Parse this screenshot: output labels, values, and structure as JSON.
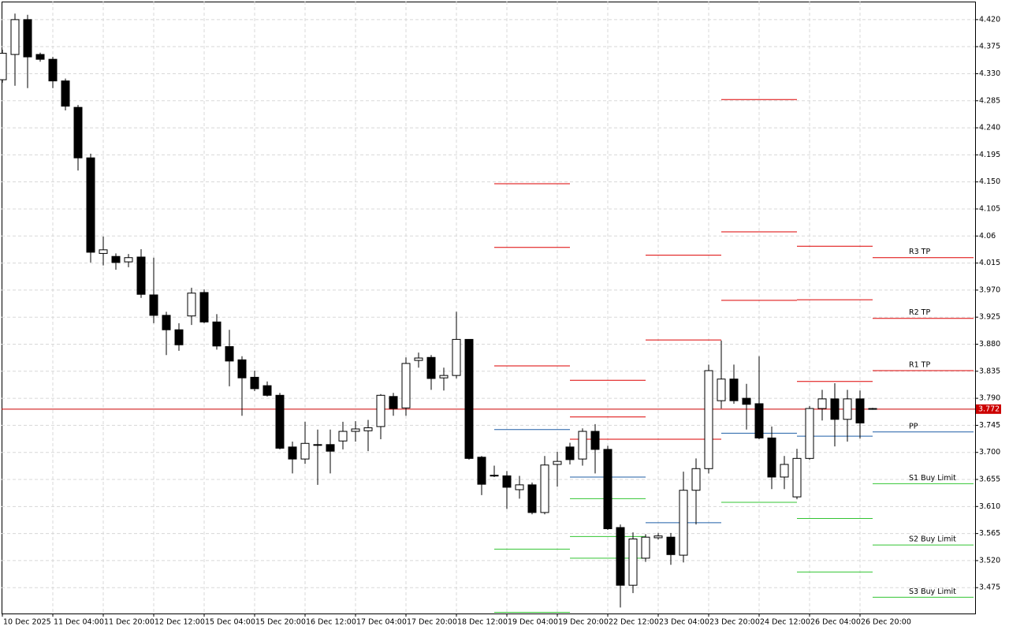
{
  "chart_data": {
    "type": "candlestick",
    "up_color": "#ffffff",
    "down_color": "#000000",
    "ylim": [
      3.432,
      4.45
    ],
    "yticks": [
      {
        "value": 4.42,
        "label": "4.420"
      },
      4.375,
      {
        "value": 4.33,
        "label": "4.330"
      },
      4.285,
      {
        "value": 4.24,
        "label": "4.240"
      },
      4.195,
      {
        "value": 4.15,
        "label": "4.150"
      },
      4.105,
      4.06,
      4.015,
      {
        "value": 3.97,
        "label": "3.970"
      },
      3.925,
      {
        "value": 3.88,
        "label": "3.880"
      },
      3.835,
      {
        "value": 3.79,
        "label": "3.790"
      },
      3.745,
      {
        "value": 3.7,
        "label": "3.700"
      },
      3.655,
      {
        "value": 3.61,
        "label": "3.610"
      },
      3.565,
      {
        "value": 3.52,
        "label": "3.520"
      },
      3.475
    ],
    "grid": true,
    "categories": [
      "10 Dec 2025",
      null,
      null,
      null,
      "11 Dec 04:00",
      null,
      null,
      null,
      "11 Dec 20:00",
      null,
      null,
      null,
      "12 Dec 12:00",
      null,
      null,
      null,
      "15 Dec 04:00",
      null,
      null,
      null,
      "15 Dec 20:00",
      null,
      null,
      null,
      "16 Dec 12:00",
      null,
      null,
      null,
      "17 Dec 04:00",
      null,
      null,
      null,
      "17 Dec 20:00",
      null,
      null,
      null,
      "18 Dec 12:00",
      null,
      null,
      null,
      "19 Dec 04:00",
      null,
      null,
      null,
      "19 Dec 20:00",
      null,
      null,
      null,
      "22 Dec 12:00",
      null,
      null,
      null,
      "23 Dec 04:00",
      null,
      null,
      null,
      "23 Dec 20:00",
      null,
      null,
      null,
      "24 Dec 12:00",
      null,
      null,
      null,
      "26 Dec 04:00",
      null,
      null,
      null,
      "26 Dec 20:00",
      null
    ],
    "open": [
      4.32,
      4.362,
      4.42,
      4.362,
      4.354,
      4.318,
      4.274,
      4.19,
      4.031,
      4.026,
      4.017,
      4.025,
      3.962,
      3.928,
      3.904,
      3.927,
      3.966,
      3.917,
      3.876,
      3.854,
      3.825,
      3.811,
      3.795,
      3.709,
      3.689,
      3.712,
      3.713,
      3.719,
      3.735,
      3.736,
      3.743,
      3.793,
      3.774,
      3.853,
      3.858,
      3.824,
      3.828,
      3.888,
      3.692,
      3.662,
      3.661,
      3.638,
      3.646,
      3.6,
      3.68,
      3.709,
      3.689,
      3.735,
      3.705,
      3.575,
      3.479,
      3.524,
      3.558,
      3.559,
      3.529,
      3.637,
      3.673,
      3.786,
      3.822,
      3.79,
      3.781,
      3.724,
      3.659,
      3.626,
      3.69,
      3.773,
      3.789,
      3.755,
      3.789,
      3.773
    ],
    "high": [
      4.37,
      4.43,
      4.428,
      4.365,
      4.358,
      4.322,
      4.278,
      4.197,
      4.059,
      4.031,
      4.03,
      4.038,
      4.024,
      3.934,
      3.915,
      3.974,
      3.971,
      3.93,
      3.904,
      3.86,
      3.836,
      3.818,
      3.799,
      3.718,
      3.751,
      3.738,
      3.738,
      3.751,
      3.752,
      3.754,
      3.797,
      3.799,
      3.858,
      3.866,
      3.862,
      3.841,
      3.934,
      3.888,
      3.694,
      3.678,
      3.669,
      3.661,
      3.65,
      3.694,
      3.701,
      3.716,
      3.74,
      3.747,
      3.711,
      3.58,
      3.567,
      3.564,
      3.566,
      3.566,
      3.668,
      3.69,
      3.846,
      3.886,
      3.846,
      3.814,
      3.86,
      3.743,
      3.694,
      3.706,
      3.777,
      3.804,
      3.815,
      3.804,
      3.803,
      3.774
    ],
    "low": [
      4.315,
      4.31,
      4.306,
      4.35,
      4.306,
      4.269,
      4.169,
      4.016,
      4.011,
      4.004,
      4.008,
      3.957,
      3.915,
      3.862,
      3.869,
      3.912,
      3.915,
      3.871,
      3.81,
      3.761,
      3.802,
      3.793,
      3.705,
      3.665,
      3.681,
      3.646,
      3.665,
      3.705,
      3.718,
      3.702,
      3.722,
      3.761,
      3.761,
      3.841,
      3.804,
      3.803,
      3.823,
      3.688,
      3.629,
      3.659,
      3.606,
      3.623,
      3.597,
      3.597,
      3.643,
      3.68,
      3.678,
      3.665,
      3.571,
      3.442,
      3.466,
      3.518,
      3.555,
      3.513,
      3.517,
      3.58,
      3.665,
      3.773,
      3.781,
      3.738,
      3.722,
      3.639,
      3.639,
      3.622,
      3.688,
      3.753,
      3.71,
      3.718,
      3.723,
      3.771
    ],
    "close": [
      4.364,
      4.42,
      4.358,
      4.354,
      4.318,
      4.276,
      4.19,
      4.033,
      4.037,
      4.016,
      4.024,
      3.963,
      3.928,
      3.904,
      3.879,
      3.965,
      3.917,
      3.877,
      3.852,
      3.824,
      3.806,
      3.795,
      3.707,
      3.689,
      3.715,
      3.713,
      3.702,
      3.735,
      3.739,
      3.741,
      3.795,
      3.773,
      3.848,
      3.857,
      3.823,
      3.828,
      3.888,
      3.69,
      3.647,
      3.661,
      3.642,
      3.646,
      3.6,
      3.679,
      3.685,
      3.688,
      3.735,
      3.705,
      3.573,
      3.479,
      3.556,
      3.559,
      3.561,
      3.53,
      3.637,
      3.673,
      3.836,
      3.822,
      3.786,
      3.78,
      3.724,
      3.659,
      3.68,
      3.69,
      3.773,
      3.789,
      3.755,
      3.789,
      3.749,
      3.772
    ],
    "price": {
      "value": 3.772,
      "color": "#cc0000"
    },
    "levels": [
      {
        "start": 39,
        "end": 45,
        "lines": [
          {
            "value": 4.147,
            "color": "#dd0000"
          },
          {
            "value": 4.041,
            "color": "#dd0000"
          },
          {
            "value": 3.844,
            "color": "#dd0000"
          },
          {
            "value": 3.738,
            "color": "#1f5fa6"
          },
          {
            "value": 3.539,
            "color": "#33c433"
          },
          {
            "value": 3.434,
            "color": "#33c433"
          }
        ]
      },
      {
        "start": 45,
        "end": 51,
        "lines": [
          {
            "value": 3.82,
            "color": "#dd0000"
          },
          {
            "value": 3.759,
            "color": "#dd0000"
          },
          {
            "value": 3.722,
            "color": "#dd0000"
          },
          {
            "value": 3.659,
            "color": "#1f5fa6"
          },
          {
            "value": 3.623,
            "color": "#33c433"
          },
          {
            "value": 3.56,
            "color": "#33c433"
          },
          {
            "value": 3.524,
            "color": "#33c433"
          }
        ]
      },
      {
        "start": 51,
        "end": 57,
        "lines": [
          {
            "value": 4.028,
            "color": "#dd0000"
          },
          {
            "value": 3.887,
            "color": "#dd0000"
          },
          {
            "value": 3.722,
            "color": "#dd0000"
          },
          {
            "value": 3.583,
            "color": "#1f5fa6"
          }
        ]
      },
      {
        "start": 57,
        "end": 63,
        "lines": [
          {
            "value": 4.287,
            "color": "#dd0000"
          },
          {
            "value": 4.067,
            "color": "#dd0000"
          },
          {
            "value": 3.953,
            "color": "#dd0000"
          },
          {
            "value": 3.732,
            "color": "#1f5fa6"
          },
          {
            "value": 3.617,
            "color": "#33c433"
          }
        ]
      },
      {
        "start": 63,
        "end": 69,
        "lines": [
          {
            "value": 4.043,
            "color": "#dd0000"
          },
          {
            "value": 3.954,
            "color": "#dd0000"
          },
          {
            "value": 3.818,
            "color": "#dd0000"
          },
          {
            "value": 3.727,
            "color": "#1f5fa6"
          },
          {
            "value": 3.59,
            "color": "#33c433"
          },
          {
            "value": 3.501,
            "color": "#33c433"
          }
        ]
      },
      {
        "start": 69,
        "end": 77,
        "lines": [
          {
            "value": 4.024,
            "color": "#dd0000",
            "label": "R3 TP"
          },
          {
            "value": 3.923,
            "color": "#dd0000",
            "label": "R2 TP"
          },
          {
            "value": 3.836,
            "color": "#dd0000",
            "label": "R1 TP"
          },
          {
            "value": 3.734,
            "color": "#1f5fa6",
            "label": "PP"
          },
          {
            "value": 3.648,
            "color": "#33c433",
            "label": "S1 Buy Limit"
          },
          {
            "value": 3.546,
            "color": "#33c433",
            "label": "S2 Buy Limit"
          },
          {
            "value": 3.459,
            "color": "#33c433",
            "label": "S3 Buy Limit"
          }
        ]
      }
    ]
  }
}
